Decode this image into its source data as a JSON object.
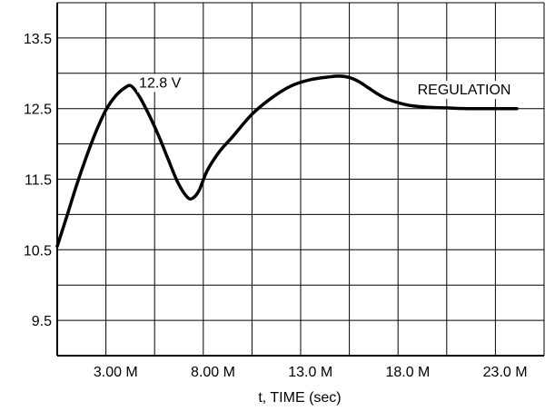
{
  "chart_data": {
    "type": "line",
    "title": "",
    "xlabel": "t, TIME (sec)",
    "ylabel": "",
    "xlim": [
      0,
      25000000
    ],
    "ylim": [
      9,
      14
    ],
    "grid": true,
    "x_ticks": [
      3000000,
      8000000,
      13000000,
      18000000,
      23000000
    ],
    "x_tick_labels": [
      "3.00 M",
      "8.00 M",
      "13.0 M",
      "18.0 M",
      "23.0 M"
    ],
    "y_ticks": [
      9.5,
      10.5,
      11.5,
      12.5,
      13.5
    ],
    "y_tick_labels": [
      "9.5",
      "10.5",
      "11.5",
      "12.5",
      "13.5"
    ],
    "series": [
      {
        "x": [
          0,
          500000,
          1000000,
          1500000,
          2000000,
          2500000,
          3000000,
          3500000,
          3800000,
          4200000,
          4700000,
          5200000,
          5700000,
          6200000,
          6700000,
          7000000,
          7300000,
          7700000,
          8300000,
          9000000,
          10000000,
          11000000,
          12000000,
          13000000,
          14000000,
          14500000,
          15000000,
          15500000,
          16000000,
          16500000,
          17000000,
          18000000,
          19000000,
          20000000,
          21000000,
          22000000,
          23000000,
          23600000
        ],
        "y": [
          10.55,
          10.98,
          11.42,
          11.82,
          12.18,
          12.48,
          12.68,
          12.8,
          12.82,
          12.68,
          12.42,
          12.12,
          11.78,
          11.45,
          11.24,
          11.24,
          11.35,
          11.62,
          11.88,
          12.1,
          12.42,
          12.65,
          12.82,
          12.91,
          12.95,
          12.96,
          12.94,
          12.88,
          12.79,
          12.7,
          12.63,
          12.55,
          12.52,
          12.51,
          12.5,
          12.5,
          12.5,
          12.5
        ]
      }
    ],
    "annotations": [
      {
        "text": "12.8 V",
        "x": 4200000,
        "y": 12.8
      },
      {
        "text": "REGULATION",
        "x": 18500000,
        "y": 12.7
      }
    ]
  }
}
